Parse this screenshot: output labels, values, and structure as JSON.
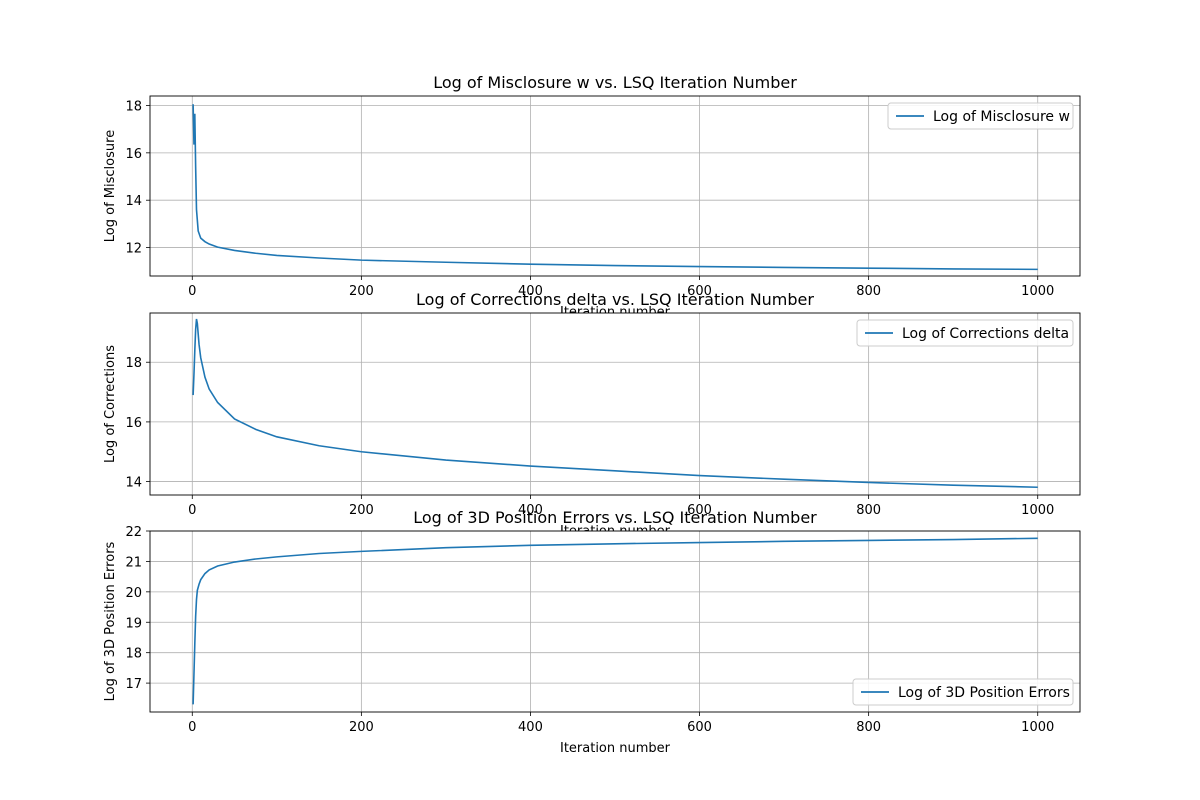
{
  "chart_data": [
    {
      "type": "line",
      "title": "Log of Misclosure w vs. LSQ Iteration Number",
      "xlabel": "Iteration number",
      "ylabel": "Log of Misclosure",
      "xlim": [
        -50,
        1050
      ],
      "ylim": [
        10.8,
        18.4
      ],
      "xticks": [
        0,
        200,
        400,
        600,
        800,
        1000
      ],
      "yticks": [
        12,
        14,
        16,
        18
      ],
      "grid": true,
      "legend": "top-right",
      "line_color": "#1f77b4",
      "series": [
        {
          "name": "Log of Misclosure w",
          "x": [
            1,
            2,
            3,
            4,
            5,
            7,
            10,
            15,
            20,
            30,
            50,
            75,
            100,
            150,
            200,
            300,
            400,
            500,
            600,
            700,
            800,
            900,
            1000
          ],
          "y": [
            18.05,
            16.35,
            17.65,
            15.4,
            13.6,
            12.7,
            12.4,
            12.25,
            12.15,
            12.02,
            11.88,
            11.76,
            11.67,
            11.56,
            11.47,
            11.38,
            11.3,
            11.24,
            11.2,
            11.16,
            11.13,
            11.1,
            11.08
          ]
        }
      ]
    },
    {
      "type": "line",
      "title": "Log of Corrections delta vs. LSQ Iteration Number",
      "xlabel": "Iteration number",
      "ylabel": "Log of Corrections",
      "xlim": [
        -50,
        1050
      ],
      "ylim": [
        13.55,
        19.65
      ],
      "xticks": [
        0,
        200,
        400,
        600,
        800,
        1000
      ],
      "yticks": [
        14,
        16,
        18
      ],
      "grid": true,
      "legend": "top-right",
      "line_color": "#1f77b4",
      "series": [
        {
          "name": "Log of Corrections delta",
          "x": [
            1,
            2,
            3,
            4,
            5,
            6,
            7,
            8,
            10,
            15,
            20,
            30,
            50,
            75,
            100,
            150,
            200,
            300,
            400,
            500,
            600,
            700,
            800,
            900,
            1000
          ],
          "y": [
            16.9,
            17.6,
            18.4,
            19.1,
            19.45,
            19.3,
            18.95,
            18.6,
            18.15,
            17.5,
            17.1,
            16.65,
            16.1,
            15.75,
            15.5,
            15.2,
            15.0,
            14.72,
            14.52,
            14.36,
            14.2,
            14.08,
            13.97,
            13.88,
            13.81
          ]
        }
      ]
    },
    {
      "type": "line",
      "title": "Log of 3D Position Errors vs. LSQ Iteration Number",
      "xlabel": "Iteration number",
      "ylabel": "Log of 3D Position Errors",
      "xlim": [
        -50,
        1050
      ],
      "ylim": [
        16.05,
        22.0
      ],
      "xticks": [
        0,
        200,
        400,
        600,
        800,
        1000
      ],
      "yticks": [
        17,
        18,
        19,
        20,
        21,
        22
      ],
      "grid": true,
      "legend": "bottom-right",
      "line_color": "#1f77b4",
      "series": [
        {
          "name": "Log of 3D Position Errors",
          "x": [
            1,
            2,
            3,
            4,
            5,
            6,
            8,
            10,
            15,
            20,
            30,
            50,
            75,
            100,
            150,
            200,
            300,
            400,
            500,
            600,
            700,
            800,
            900,
            1000
          ],
          "y": [
            16.3,
            17.3,
            18.3,
            19.2,
            19.75,
            20.05,
            20.25,
            20.4,
            20.6,
            20.72,
            20.85,
            20.98,
            21.08,
            21.15,
            21.26,
            21.33,
            21.45,
            21.53,
            21.58,
            21.62,
            21.66,
            21.69,
            21.72,
            21.76
          ]
        }
      ]
    }
  ]
}
